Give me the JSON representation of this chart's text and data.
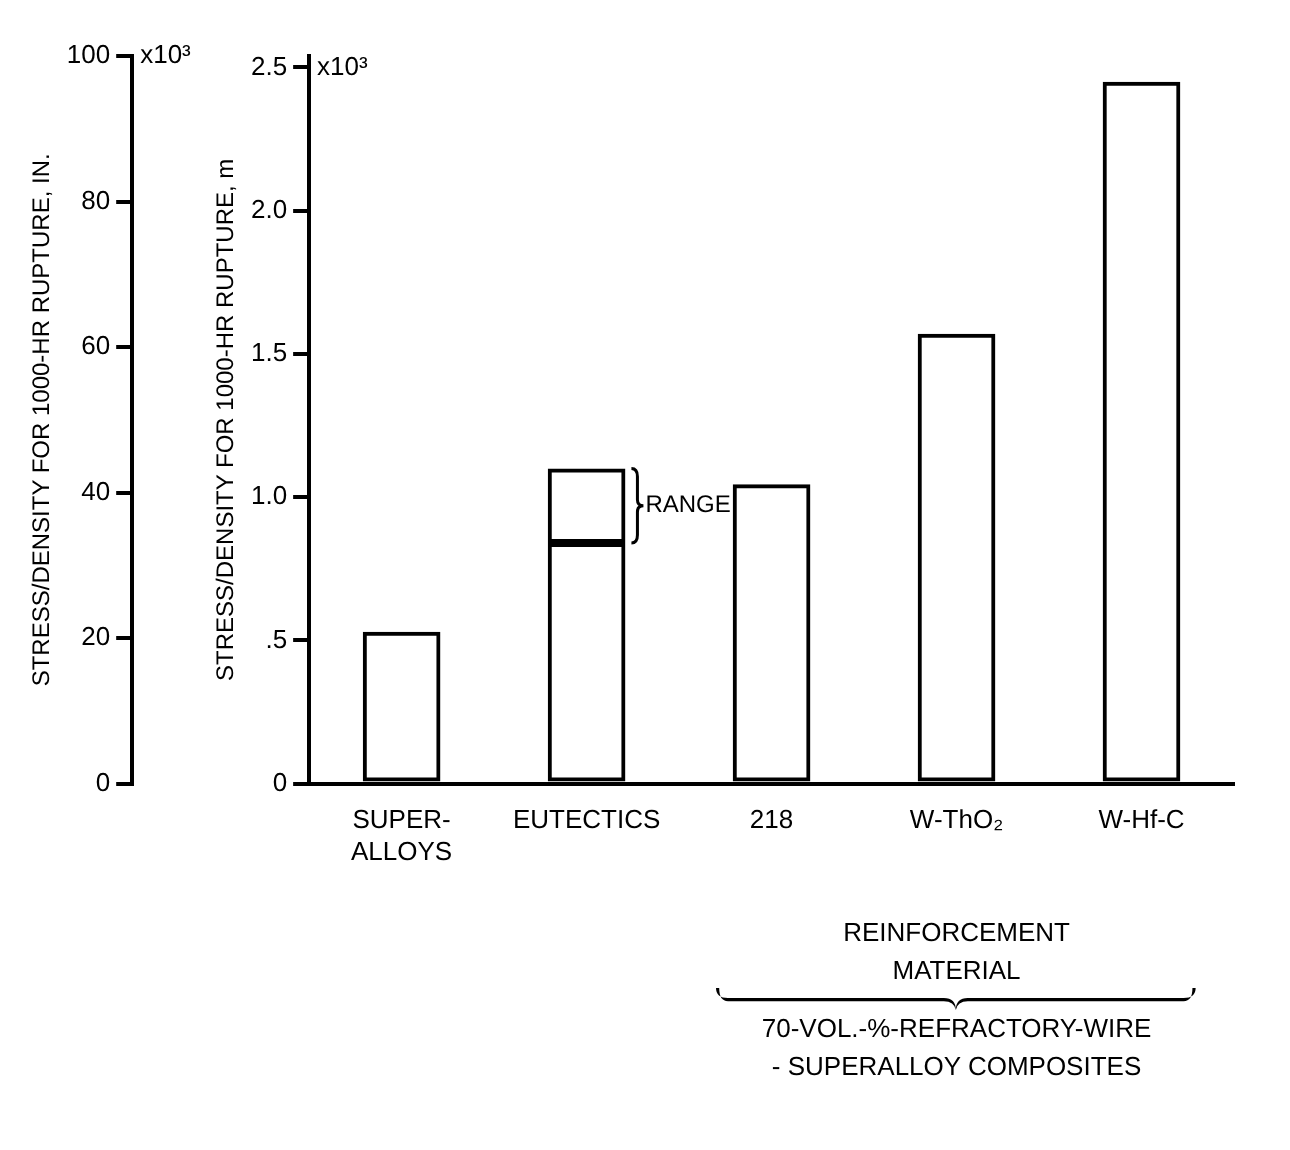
{
  "chart_data": {
    "type": "bar",
    "categories": [
      "SUPER-ALLOYS",
      "EUTECTICS",
      "218",
      "W-ThO₂",
      "W-Hf-C"
    ],
    "series": [
      {
        "color": "#000000",
        "values": [
          0.53,
          0.84,
          1.045,
          1.57,
          2.45
        ]
      },
      {
        "color": "#000000",
        "values": [
          null,
          0.26,
          null,
          null,
          null
        ]
      }
    ],
    "stacked": true,
    "ylabel": "STRESS/DENSITY FOR 1000-HR RUPTURE, m",
    "y2label": "STRESS/DENSITY FOR 1000-HR RUPTURE, IN.",
    "ylim": [
      0,
      2.54
    ],
    "yticks": [
      0,
      {
        "value": 0.5,
        "label": ".5"
      },
      {
        "value": 1,
        "label": "1.0"
      },
      {
        "value": 1.5,
        "label": "1.5"
      },
      {
        "value": 2,
        "label": "2.0"
      },
      2.5
    ],
    "y2lim": [
      0,
      100
    ],
    "y2ticks": [
      0,
      20,
      40,
      60,
      80,
      100
    ],
    "grid": false,
    "legend": false,
    "annotations": [
      "RANGE",
      "REINFORCEMENT MATERIAL",
      "70-VOL.-%-REFRACTORY-WIRE - SUPERALLOY COMPOSITES",
      "x10³",
      "x10³"
    ]
  }
}
